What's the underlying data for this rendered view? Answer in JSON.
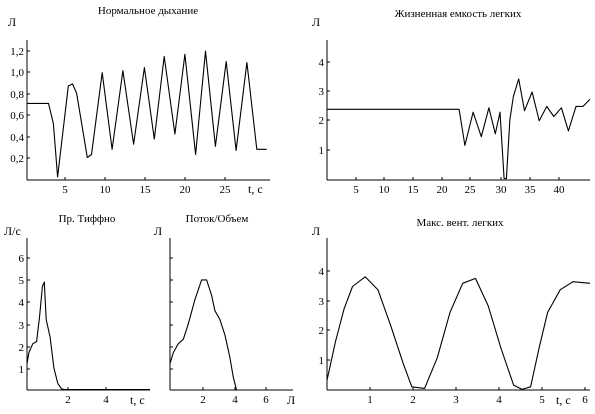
{
  "chart_data": [
    {
      "type": "line",
      "title": "Нормальное дыхание",
      "yunit": "Л",
      "xlabel": "t, с",
      "xlim": [
        0,
        29.4
      ],
      "ylim": [
        0,
        1.37
      ],
      "xticks": [
        "5",
        "10",
        "15",
        "20",
        "25"
      ],
      "yticks": [
        "0,2",
        "0,4",
        "0,6",
        "0,8",
        "1,0",
        "1,2"
      ],
      "x": [
        0,
        2.6,
        3.2,
        3.7,
        5,
        5.5,
        6,
        7.3,
        7.8,
        9.1,
        10.3,
        11.6,
        12.9,
        14.2,
        15.4,
        16.6,
        17.9,
        19.1,
        20.4,
        21.6,
        22.8,
        24.1,
        25.3,
        26.6,
        27.8,
        29.0
      ],
      "y": [
        0.75,
        0.75,
        0.55,
        0.03,
        0.92,
        0.94,
        0.85,
        0.22,
        0.25,
        1.05,
        0.3,
        1.07,
        0.35,
        1.1,
        0.4,
        1.21,
        0.45,
        1.23,
        0.25,
        1.26,
        0.33,
        1.16,
        0.29,
        1.15,
        0.3,
        0.3
      ]
    },
    {
      "type": "line",
      "title": "Жизненная емкость легких",
      "yunit": "Л",
      "xlim": [
        0,
        45
      ],
      "ylim": [
        0,
        4.85
      ],
      "xticks": [
        "5",
        "10",
        "15",
        "20",
        "25",
        "30",
        "35",
        "40"
      ],
      "yticks": [
        "1",
        "2",
        "3",
        "4"
      ],
      "x": [
        0,
        22.6,
        23.6,
        25,
        26.4,
        27.7,
        28.8,
        29.6,
        30.3,
        30.7,
        31.3,
        31.9,
        32.8,
        33.8,
        35.1,
        36.3,
        37.6,
        38.8,
        40.1,
        41.3,
        42.6,
        43.8,
        45
      ],
      "y": [
        2.45,
        2.45,
        1.2,
        2.35,
        1.5,
        2.5,
        1.6,
        2.35,
        0.05,
        0.05,
        2.1,
        2.9,
        3.5,
        2.4,
        3.05,
        2.05,
        2.55,
        2.2,
        2.5,
        1.7,
        2.55,
        2.55,
        2.8
      ]
    },
    {
      "type": "line",
      "title": "Пр. Тиффно",
      "yunit": "Л/с",
      "xlabel": "t, с",
      "xlim": [
        0,
        6.4
      ],
      "ylim": [
        0,
        6.9
      ],
      "xticks": [
        "2",
        "4"
      ],
      "yticks": [
        "1",
        "2",
        "3",
        "4",
        "5",
        "6"
      ],
      "x": [
        0,
        0.1,
        0.3,
        0.5,
        0.65,
        0.8,
        0.9,
        1.0,
        1.2,
        1.4,
        1.6,
        1.8,
        2.0,
        6.4
      ],
      "y": [
        1.2,
        1.7,
        2.1,
        2.2,
        3.3,
        4.7,
        4.9,
        3.2,
        2.4,
        1.0,
        0.3,
        0.05,
        0.02,
        0.02
      ]
    },
    {
      "type": "line",
      "title": "Поток/Объем",
      "yunit": "Л",
      "xlabel": "Л",
      "xlim": [
        0,
        7.4
      ],
      "ylim": [
        0,
        6.9
      ],
      "xticks": [
        "2",
        "4",
        "6"
      ],
      "yticks": [],
      "x": [
        0,
        0.2,
        0.5,
        0.8,
        1.1,
        1.5,
        1.9,
        2.2,
        2.5,
        2.7,
        3.0,
        3.3,
        3.6,
        3.8,
        4.0
      ],
      "y": [
        1.2,
        1.7,
        2.1,
        2.3,
        3.0,
        4.1,
        5.0,
        5.0,
        4.3,
        3.6,
        3.2,
        2.5,
        1.5,
        0.6,
        0.0
      ]
    },
    {
      "type": "line",
      "title": "Макс. вент. легких",
      "yunit": "Л",
      "xlabel": "t, с",
      "xlim": [
        0,
        6.2
      ],
      "ylim": [
        0,
        4.7
      ],
      "xticks": [
        "1",
        "2",
        "3",
        "4",
        "5",
        "6"
      ],
      "yticks": [
        "1",
        "2",
        "3",
        "4"
      ],
      "x": [
        0,
        0.2,
        0.4,
        0.6,
        0.9,
        1.2,
        1.5,
        1.8,
        2.0,
        2.3,
        2.6,
        2.9,
        3.2,
        3.5,
        3.8,
        4.1,
        4.4,
        4.6,
        4.8,
        5.0,
        5.2,
        5.5,
        5.8,
        6.2
      ],
      "y": [
        0.3,
        1.5,
        2.5,
        3.2,
        3.5,
        3.1,
        2.0,
        0.8,
        0.1,
        0.05,
        1.0,
        2.4,
        3.3,
        3.45,
        2.6,
        1.3,
        0.15,
        0.02,
        0.1,
        1.3,
        2.4,
        3.1,
        3.35,
        3.3
      ]
    }
  ]
}
